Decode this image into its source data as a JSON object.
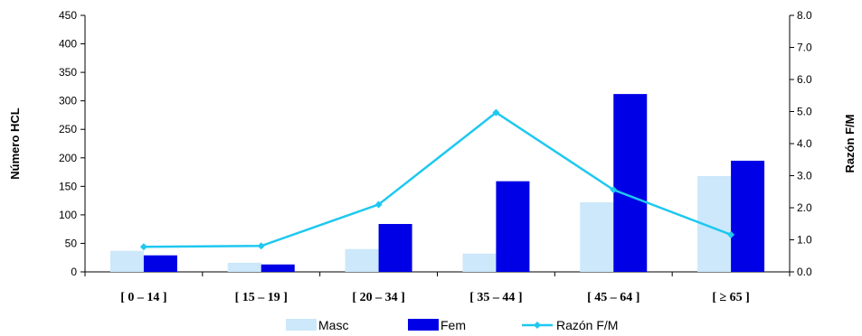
{
  "chart_data": {
    "type": "bar",
    "categories": [
      "[ 0 – 14 ]",
      "[ 15 – 19 ]",
      "[ 20 – 34 ]",
      "[ 35 – 44 ]",
      "[ 45 – 64 ]",
      "[ ≥ 65 ]"
    ],
    "series": [
      {
        "name": "Masc",
        "kind": "bar",
        "axis": "left",
        "color": "#CCE8FA",
        "values": [
          37,
          16,
          40,
          32,
          122,
          168
        ]
      },
      {
        "name": "Fem",
        "kind": "bar",
        "axis": "left",
        "color": "#0000E6",
        "values": [
          29,
          13,
          84,
          159,
          312,
          195
        ]
      },
      {
        "name": "Razón F/M",
        "kind": "line",
        "axis": "right",
        "color": "#1EC8F0",
        "values": [
          0.78,
          0.81,
          2.1,
          4.97,
          2.56,
          1.16
        ]
      }
    ],
    "ylabel": "Número HCL",
    "y2label": "Razón F/M",
    "ylim": [
      0,
      450
    ],
    "y2lim": [
      0,
      8.0
    ],
    "yticks": [
      "0",
      "50",
      "100",
      "150",
      "200",
      "250",
      "300",
      "350",
      "400",
      "450"
    ],
    "y2ticks": [
      "0.0",
      "1.0",
      "2.0",
      "3.0",
      "4.0",
      "5.0",
      "6.0",
      "7.0",
      "8.0"
    ],
    "grid": false,
    "legend_position": "bottom"
  }
}
